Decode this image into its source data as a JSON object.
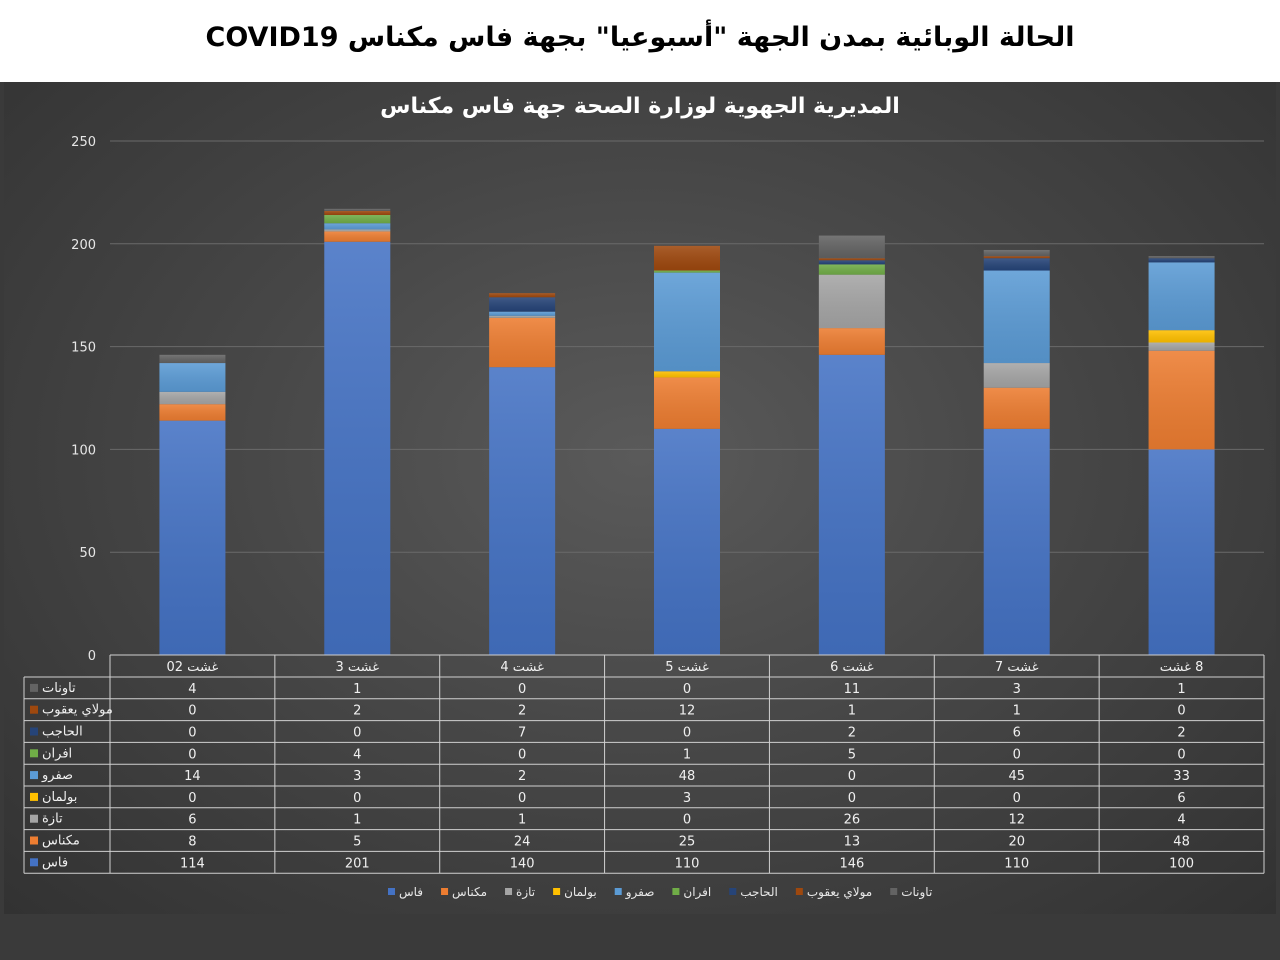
{
  "page": {
    "title": "الحالة الوبائية بمدن الجهة  \"أسبوعيا\" بجهة فاس مكناس COVID19"
  },
  "chart_data": {
    "type": "bar",
    "stacked": true,
    "title": "المديرية الجهوية لوزارة الصحة جهة فاس مكناس",
    "categories": [
      "غشت 02",
      "غشت 3",
      "غشت 4",
      "غشت 5",
      "غشت 6",
      "غشت 7",
      "8 غشت"
    ],
    "ylim": [
      0,
      250
    ],
    "yticks": [
      0,
      50,
      100,
      150,
      200,
      250
    ],
    "grid": true,
    "legend_position": "bottom",
    "series": [
      {
        "name": "فاس",
        "color": "#4472c4",
        "values": [
          114,
          201,
          140,
          110,
          146,
          110,
          100
        ]
      },
      {
        "name": "مكناس",
        "color": "#ed7d31",
        "values": [
          8,
          5,
          24,
          25,
          13,
          20,
          48
        ]
      },
      {
        "name": "تازة",
        "color": "#a5a5a5",
        "values": [
          6,
          1,
          1,
          0,
          26,
          12,
          4
        ]
      },
      {
        "name": "بولمان",
        "color": "#ffc000",
        "values": [
          0,
          0,
          0,
          3,
          0,
          0,
          6
        ]
      },
      {
        "name": "صفرو",
        "color": "#5b9bd5",
        "values": [
          14,
          3,
          2,
          48,
          0,
          45,
          33
        ]
      },
      {
        "name": "افران",
        "color": "#70ad47",
        "values": [
          0,
          4,
          0,
          1,
          5,
          0,
          0
        ]
      },
      {
        "name": "الحاجب",
        "color": "#264478",
        "values": [
          0,
          0,
          7,
          0,
          2,
          6,
          2
        ]
      },
      {
        "name": "مولاي يعقوب",
        "color": "#9e480e",
        "values": [
          0,
          2,
          2,
          12,
          1,
          1,
          0
        ]
      },
      {
        "name": "تاونات",
        "color": "#636363",
        "values": [
          4,
          1,
          0,
          0,
          11,
          3,
          1
        ]
      }
    ]
  }
}
